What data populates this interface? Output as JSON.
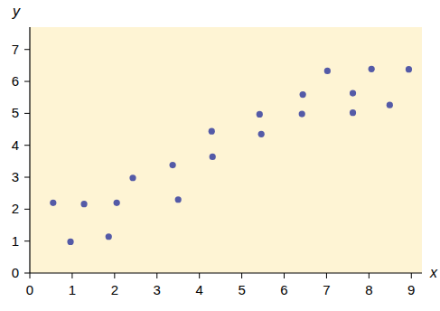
{
  "chart_data": {
    "type": "scatter",
    "x_label": "x",
    "y_label": "y",
    "x": [
      0.55,
      0.96,
      1.28,
      1.86,
      2.05,
      2.43,
      3.37,
      3.5,
      4.29,
      4.31,
      5.42,
      5.46,
      6.44,
      6.42,
      7.02,
      7.62,
      7.62,
      8.06,
      8.49,
      8.94
    ],
    "values": [
      2.2,
      0.98,
      2.16,
      1.14,
      2.2,
      2.98,
      3.38,
      2.3,
      4.44,
      3.64,
      4.97,
      4.35,
      5.59,
      4.98,
      6.33,
      5.63,
      5.02,
      6.39,
      5.26,
      6.38
    ],
    "color": "#545aa7",
    "marker": "circle",
    "xlim": [
      0,
      9.25
    ],
    "ylim": [
      0,
      7.7
    ],
    "xticks": [
      0,
      1,
      2,
      3,
      4,
      5,
      6,
      7,
      8,
      9
    ],
    "yticks": [
      0,
      1,
      2,
      3,
      4,
      5,
      6,
      7
    ],
    "grid": false
  }
}
